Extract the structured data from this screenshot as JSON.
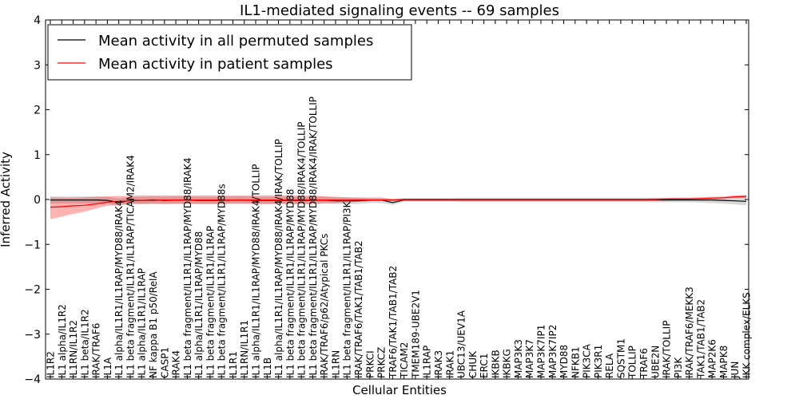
{
  "chart_data": {
    "type": "line",
    "title": "IL1-mediated signaling events -- 69 samples",
    "xlabel": "Cellular Entities",
    "ylabel": "Inferred Activity",
    "ylim": [
      -4,
      4
    ],
    "yticks": [
      -4,
      -3,
      -2,
      -1,
      0,
      1,
      2,
      3,
      4
    ],
    "yticklabels": [
      "−4",
      "−3",
      "−2",
      "−1",
      "0",
      "1",
      "2",
      "3",
      "4"
    ],
    "legend_position": "top-left",
    "categories": [
      "IL1R2",
      "IL1 alpha/IL1R2",
      "IL1RN/IL1R2",
      "IL1 beta/IL1R2",
      "IRAK/TRAF6",
      "IL1A",
      "IL1 alpha/IL1R1/IL1RAP/MYD88/IRAK4",
      "IL1 beta fragment/IL1R1/IL1RAP/TICAM2/IRAK4",
      "IL1 alpha/IL1R1/IL1RAP",
      "NF kappa B1 p50/RelA",
      "CASP1",
      "IRAK4",
      "IL1 beta fragment/IL1R1/IL1RAP/MYD88/IRAK4",
      "IL1 alpha/IL1R1/IL1RAP/MYD88",
      "IL1 beta fragment/IL1R1/IL1RAP",
      "IL1 beta fragment/IL1R1/IL1RAP/MYD88s",
      "IL1R1",
      "IL1RN/IL1R1",
      "IL1 alpha/IL1R1/IL1RAP/MYD88/IRAK4/TOLLIP",
      "IL1B",
      "IL1 alpha/IL1R1/IL1RAP/MYD88/IRAK4/IRAK/TOLLIP",
      "IL1 beta fragment/IL1R1/IL1RAP/MYD88",
      "IL1 beta fragment/IL1R1/IL1RAP/MYD88/IRAK4/TOLLIP",
      "IL1 beta fragment/IL1R1/IL1RAP/MYD88/IRAK4/IRAK/TOLLIP",
      "IRAK/TRAF6/p62/Atypical PKCs",
      "IL1RN",
      "IL1 beta fragment/IL1R1/IL1RAP/PI3K",
      "IRAK/TRAF6/TAK1/TAB1/TAB2",
      "PRKCI",
      "PRKCZ",
      "TRAF6/TAK1/TAB1/TAB2",
      "TICAM2",
      "TMEM189-UBE2V1",
      "IL1RAP",
      "IRAK3",
      "IRAK1",
      "UBC13/UEV1A",
      "CHUK",
      "ERC1",
      "IKBKB",
      "IKBKG",
      "MAP3K3",
      "MAP3K7",
      "MAP3K7IP1",
      "MAP3K7IP2",
      "MYD88",
      "NFKB1",
      "PIK3CA",
      "PIK3R1",
      "RELA",
      "SQSTM1",
      "TOLLIP",
      "TRAF6",
      "UBE2N",
      "IRAK/TOLLIP",
      "PI3K",
      "IRAK/TRAF6/MEKK3",
      "TAK1/TAB1/TAB2",
      "MAP2K6",
      "MAPK8",
      "JUN",
      "IKK complex/ELKS"
    ],
    "series": [
      {
        "name": "Mean activity in all permuted samples",
        "color": "#000000",
        "values": [
          -0.01,
          -0.01,
          -0.01,
          -0.01,
          -0.01,
          -0.02,
          -0.07,
          -0.02,
          -0.02,
          -0.01,
          -0.02,
          -0.01,
          -0.01,
          -0.02,
          -0.02,
          -0.02,
          -0.01,
          -0.01,
          -0.02,
          -0.02,
          -0.02,
          -0.02,
          -0.02,
          -0.02,
          -0.01,
          -0.03,
          -0.03,
          -0.03,
          -0.01,
          -0.01,
          -0.07,
          -0.01,
          -0.01,
          -0.01,
          -0.01,
          -0.01,
          -0.01,
          -0.01,
          -0.01,
          -0.01,
          -0.01,
          -0.01,
          -0.01,
          -0.01,
          -0.01,
          -0.01,
          -0.01,
          -0.01,
          -0.01,
          -0.01,
          -0.01,
          -0.01,
          -0.01,
          -0.01,
          -0.01,
          -0.01,
          -0.01,
          -0.01,
          -0.01,
          -0.02,
          -0.03,
          -0.04
        ],
        "band_low": [
          -0.09,
          -0.09,
          -0.09,
          -0.09,
          -0.09,
          -0.1,
          -0.14,
          -0.1,
          -0.1,
          -0.09,
          -0.1,
          -0.09,
          -0.09,
          -0.1,
          -0.1,
          -0.1,
          -0.09,
          -0.09,
          -0.1,
          -0.1,
          -0.1,
          -0.1,
          -0.1,
          -0.1,
          -0.09,
          -0.1,
          -0.1,
          -0.1,
          -0.08,
          -0.08,
          -0.12,
          -0.05,
          -0.05,
          -0.05,
          -0.05,
          -0.05,
          -0.06,
          -0.06,
          -0.06,
          -0.06,
          -0.06,
          -0.06,
          -0.06,
          -0.06,
          -0.06,
          -0.06,
          -0.06,
          -0.06,
          -0.06,
          -0.06,
          -0.06,
          -0.06,
          -0.06,
          -0.06,
          -0.06,
          -0.06,
          -0.06,
          -0.07,
          -0.08,
          -0.09,
          -0.11,
          -0.13
        ],
        "band_high": [
          0.07,
          0.07,
          0.07,
          0.07,
          0.07,
          0.06,
          0.02,
          0.06,
          0.06,
          0.07,
          0.06,
          0.07,
          0.07,
          0.06,
          0.06,
          0.06,
          0.07,
          0.07,
          0.06,
          0.06,
          0.06,
          0.06,
          0.06,
          0.06,
          0.07,
          0.05,
          0.05,
          0.05,
          0.05,
          0.05,
          0.0,
          0.03,
          0.03,
          0.03,
          0.03,
          0.03,
          0.04,
          0.04,
          0.04,
          0.04,
          0.04,
          0.04,
          0.04,
          0.04,
          0.04,
          0.04,
          0.04,
          0.04,
          0.04,
          0.04,
          0.04,
          0.04,
          0.04,
          0.04,
          0.04,
          0.04,
          0.04,
          0.04,
          0.04,
          0.05,
          0.05,
          0.06
        ]
      },
      {
        "name": "Mean activity in patient samples",
        "color": "#ff0000",
        "values": [
          -0.17,
          -0.16,
          -0.14,
          -0.13,
          -0.1,
          -0.06,
          -0.04,
          -0.03,
          -0.02,
          -0.02,
          -0.01,
          -0.01,
          -0.01,
          -0.01,
          -0.01,
          -0.01,
          -0.01,
          -0.01,
          -0.01,
          -0.01,
          -0.01,
          -0.01,
          -0.01,
          -0.01,
          -0.01,
          -0.01,
          -0.01,
          -0.01,
          -0.01,
          -0.01,
          -0.01,
          0.0,
          0.0,
          0.0,
          0.0,
          0.0,
          0.0,
          0.0,
          0.0,
          0.0,
          0.0,
          0.0,
          0.0,
          0.0,
          0.0,
          0.0,
          0.0,
          0.0,
          0.0,
          0.0,
          0.0,
          0.0,
          0.0,
          0.0,
          0.01,
          0.01,
          0.01,
          0.02,
          0.03,
          0.04,
          0.06,
          0.07
        ],
        "band_low": [
          -0.44,
          -0.38,
          -0.32,
          -0.27,
          -0.2,
          -0.14,
          -0.12,
          -0.1,
          -0.1,
          -0.1,
          -0.1,
          -0.1,
          -0.1,
          -0.1,
          -0.1,
          -0.1,
          -0.09,
          -0.09,
          -0.1,
          -0.1,
          -0.1,
          -0.1,
          -0.1,
          -0.1,
          -0.08,
          -0.08,
          -0.07,
          -0.05,
          -0.04,
          -0.03,
          -0.03,
          -0.02,
          -0.02,
          -0.02,
          -0.02,
          -0.02,
          -0.02,
          -0.02,
          -0.02,
          -0.02,
          -0.02,
          -0.02,
          -0.02,
          -0.02,
          -0.02,
          -0.02,
          -0.02,
          -0.02,
          -0.02,
          -0.02,
          -0.02,
          -0.02,
          -0.02,
          -0.02,
          -0.01,
          -0.01,
          -0.01,
          0.0,
          0.01,
          0.02,
          0.03,
          0.04
        ],
        "band_high": [
          0.05,
          0.04,
          0.04,
          0.05,
          0.06,
          0.07,
          0.08,
          0.08,
          0.09,
          0.09,
          0.09,
          0.09,
          0.09,
          0.09,
          0.09,
          0.09,
          0.09,
          0.09,
          0.09,
          0.09,
          0.09,
          0.09,
          0.09,
          0.09,
          0.07,
          0.06,
          0.05,
          0.04,
          0.03,
          0.03,
          0.02,
          0.02,
          0.02,
          0.02,
          0.02,
          0.02,
          0.02,
          0.02,
          0.02,
          0.02,
          0.02,
          0.02,
          0.02,
          0.02,
          0.02,
          0.02,
          0.02,
          0.02,
          0.02,
          0.02,
          0.02,
          0.02,
          0.02,
          0.03,
          0.03,
          0.04,
          0.04,
          0.05,
          0.06,
          0.07,
          0.09,
          0.1
        ]
      }
    ]
  }
}
